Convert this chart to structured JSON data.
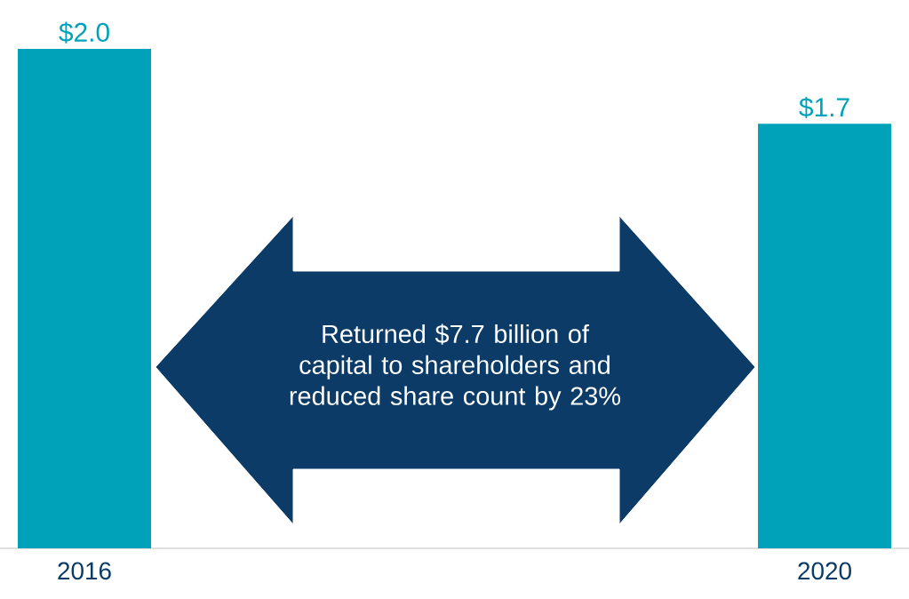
{
  "chart_data": {
    "type": "bar",
    "categories": [
      "2016",
      "2020"
    ],
    "values": [
      2.0,
      1.7
    ],
    "color": "#00a2b9",
    "value_labels": [
      "$2.0",
      "$1.7"
    ],
    "annotations": [
      "Returned $7.7 billion of capital to shareholders and reduced share count by 23%"
    ]
  }
}
